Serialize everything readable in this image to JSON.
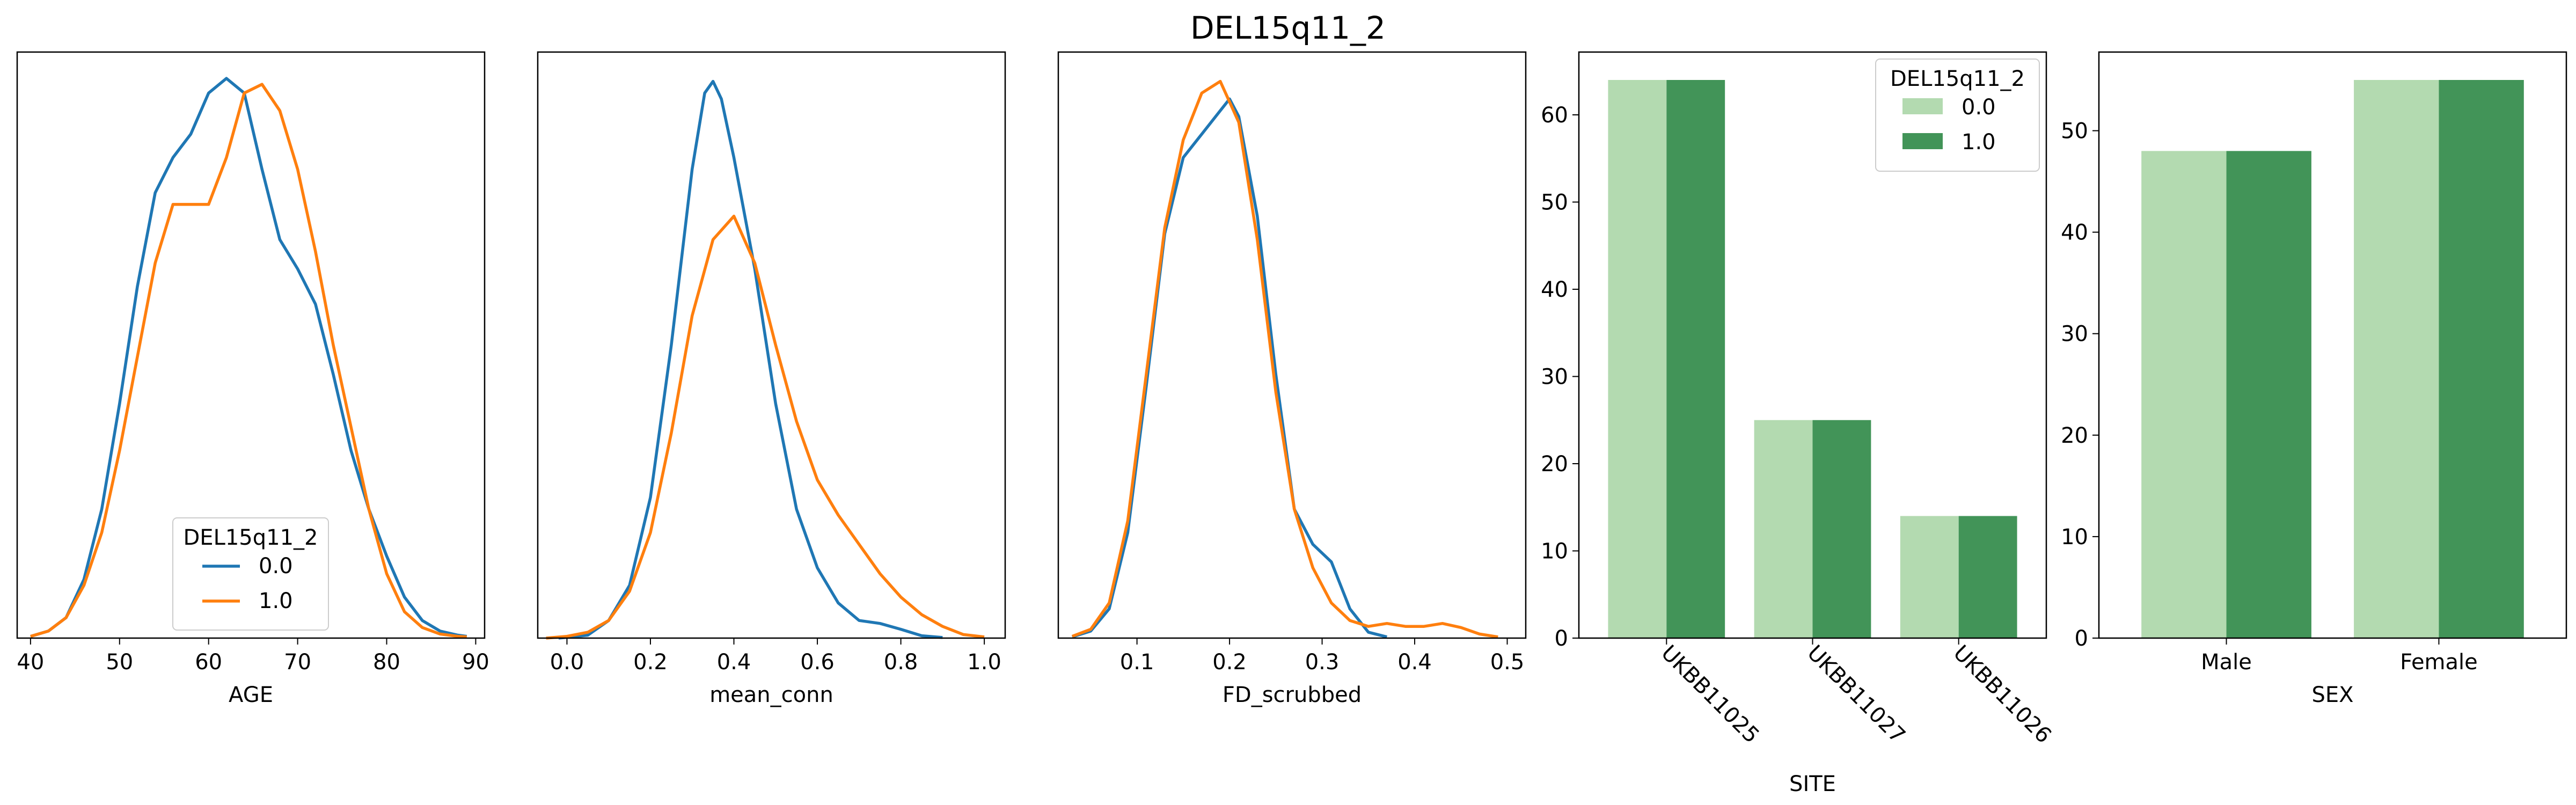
{
  "figure": {
    "title": "DEL15q11_2"
  },
  "colors": {
    "kde_0": "#1f77b4",
    "kde_1": "#ff7f0e",
    "bar_0": "#b3dab0",
    "bar_1": "#429458"
  },
  "chart_data": [
    {
      "type": "line",
      "kind": "kde",
      "xlabel": "AGE",
      "ylabel": "",
      "xlim": [
        38.5,
        91.0
      ],
      "ylim": [
        0,
        1.0
      ],
      "xticks": [
        40,
        50,
        60,
        70,
        80,
        90
      ],
      "yticks_shown": false,
      "legend": {
        "title": "DEL15q11_2",
        "placement": "lower-center"
      },
      "series": [
        {
          "name": "0.0",
          "color": "#1f77b4",
          "x": [
            40,
            42,
            44,
            46,
            48,
            50,
            52,
            54,
            56,
            58,
            60,
            62,
            64,
            66,
            68,
            70,
            72,
            74,
            76,
            78,
            80,
            82,
            84,
            86,
            88,
            89
          ],
          "y": [
            0.003,
            0.012,
            0.035,
            0.1,
            0.22,
            0.4,
            0.6,
            0.76,
            0.82,
            0.86,
            0.93,
            0.955,
            0.93,
            0.8,
            0.68,
            0.63,
            0.57,
            0.45,
            0.32,
            0.22,
            0.14,
            0.07,
            0.03,
            0.012,
            0.005,
            0.003
          ]
        },
        {
          "name": "1.0",
          "color": "#ff7f0e",
          "x": [
            40,
            42,
            44,
            46,
            48,
            50,
            52,
            54,
            56,
            58,
            60,
            62,
            64,
            66,
            68,
            70,
            72,
            74,
            76,
            78,
            80,
            82,
            84,
            86,
            88,
            89
          ],
          "y": [
            0.003,
            0.012,
            0.035,
            0.09,
            0.18,
            0.32,
            0.48,
            0.64,
            0.74,
            0.74,
            0.74,
            0.82,
            0.93,
            0.945,
            0.9,
            0.8,
            0.66,
            0.5,
            0.36,
            0.22,
            0.11,
            0.045,
            0.018,
            0.007,
            0.003,
            0.002
          ]
        }
      ]
    },
    {
      "type": "line",
      "kind": "kde",
      "xlabel": "mean_conn",
      "ylabel": "",
      "xlim": [
        -0.07,
        1.05
      ],
      "ylim": [
        0,
        1.0
      ],
      "xticks": [
        0.0,
        0.2,
        0.4,
        0.6,
        0.8,
        1.0
      ],
      "yticks_shown": false,
      "series": [
        {
          "name": "0.0",
          "color": "#1f77b4",
          "x": [
            -0.02,
            0.05,
            0.1,
            0.15,
            0.2,
            0.25,
            0.3,
            0.33,
            0.35,
            0.37,
            0.4,
            0.45,
            0.5,
            0.55,
            0.6,
            0.65,
            0.7,
            0.75,
            0.8,
            0.85,
            0.9
          ],
          "y": [
            0.0,
            0.005,
            0.03,
            0.09,
            0.24,
            0.5,
            0.8,
            0.93,
            0.95,
            0.92,
            0.82,
            0.63,
            0.4,
            0.22,
            0.12,
            0.06,
            0.03,
            0.025,
            0.015,
            0.004,
            0.001
          ]
        },
        {
          "name": "1.0",
          "color": "#ff7f0e",
          "x": [
            -0.05,
            0.0,
            0.05,
            0.1,
            0.15,
            0.2,
            0.25,
            0.3,
            0.35,
            0.4,
            0.45,
            0.5,
            0.55,
            0.6,
            0.65,
            0.7,
            0.75,
            0.8,
            0.85,
            0.9,
            0.95,
            1.0
          ],
          "y": [
            0.0,
            0.003,
            0.01,
            0.03,
            0.08,
            0.18,
            0.35,
            0.55,
            0.68,
            0.72,
            0.64,
            0.5,
            0.37,
            0.27,
            0.21,
            0.16,
            0.11,
            0.07,
            0.04,
            0.02,
            0.006,
            0.002
          ]
        }
      ]
    },
    {
      "type": "line",
      "kind": "kde",
      "xlabel": "FD_scrubbed",
      "ylabel": "",
      "xlim": [
        0.015,
        0.52
      ],
      "ylim": [
        0,
        1.0
      ],
      "xticks": [
        0.1,
        0.2,
        0.3,
        0.4,
        0.5
      ],
      "yticks_shown": false,
      "series": [
        {
          "name": "0.0",
          "color": "#1f77b4",
          "x": [
            0.03,
            0.05,
            0.07,
            0.09,
            0.11,
            0.13,
            0.15,
            0.17,
            0.19,
            0.2,
            0.21,
            0.23,
            0.25,
            0.27,
            0.29,
            0.31,
            0.33,
            0.35,
            0.37
          ],
          "y": [
            0.002,
            0.012,
            0.05,
            0.18,
            0.43,
            0.69,
            0.82,
            0.86,
            0.9,
            0.92,
            0.89,
            0.72,
            0.45,
            0.22,
            0.16,
            0.13,
            0.05,
            0.01,
            0.002
          ]
        },
        {
          "name": "1.0",
          "color": "#ff7f0e",
          "x": [
            0.03,
            0.05,
            0.07,
            0.09,
            0.11,
            0.13,
            0.15,
            0.17,
            0.19,
            0.21,
            0.23,
            0.25,
            0.27,
            0.29,
            0.31,
            0.33,
            0.35,
            0.37,
            0.39,
            0.41,
            0.43,
            0.45,
            0.47,
            0.49
          ],
          "y": [
            0.003,
            0.015,
            0.06,
            0.2,
            0.45,
            0.7,
            0.85,
            0.93,
            0.95,
            0.88,
            0.68,
            0.42,
            0.22,
            0.12,
            0.06,
            0.03,
            0.02,
            0.025,
            0.02,
            0.02,
            0.025,
            0.018,
            0.007,
            0.002
          ]
        }
      ]
    },
    {
      "type": "bar",
      "xlabel": "SITE",
      "ylabel": "",
      "ylim": [
        0,
        67.2
      ],
      "yticks": [
        0,
        10,
        20,
        30,
        40,
        50,
        60
      ],
      "categories": [
        "UKBB11025",
        "UKBB11027",
        "UKBB11026"
      ],
      "tick_rotation": -45,
      "legend": {
        "title": "DEL15q11_2",
        "placement": "top-right"
      },
      "series": [
        {
          "name": "0.0",
          "color": "#b3dab0",
          "values": [
            64,
            25,
            14
          ]
        },
        {
          "name": "1.0",
          "color": "#429458",
          "values": [
            64,
            25,
            14
          ]
        }
      ]
    },
    {
      "type": "bar",
      "xlabel": "SEX",
      "ylabel": "",
      "ylim": [
        0,
        57.75
      ],
      "yticks": [
        0,
        10,
        20,
        30,
        40,
        50
      ],
      "categories": [
        "Male",
        "Female"
      ],
      "series": [
        {
          "name": "0.0",
          "color": "#b3dab0",
          "values": [
            48,
            55
          ]
        },
        {
          "name": "1.0",
          "color": "#429458",
          "values": [
            48,
            55
          ]
        }
      ]
    }
  ]
}
